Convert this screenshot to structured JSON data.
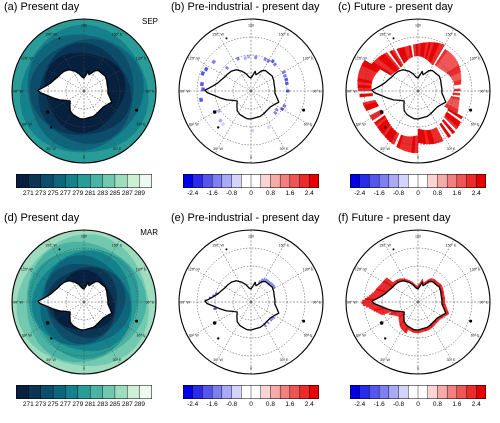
{
  "chart_data": [
    {
      "type": "heatmap",
      "panel": "a",
      "title": "(a) Present day",
      "month": "SEP",
      "projection": "south-polar-stereographic",
      "colorbar": {
        "levels": [
          "271",
          "273",
          "275",
          "277",
          "279",
          "281",
          "283",
          "285",
          "287",
          "289"
        ],
        "colors": [
          "#07203f",
          "#0a3554",
          "#0b4d6a",
          "#0e667c",
          "#14818c",
          "#2a9c98",
          "#4bb3a3",
          "#73c9b0",
          "#9fdcbf",
          "#cdefd3",
          "#edfbef"
        ]
      },
      "longitude_labels": [
        "0",
        "30° E",
        "60° E",
        "90° E",
        "120° E",
        "150° E",
        "180",
        "150° W",
        "120° W",
        "90° W",
        "60° W",
        "30° W"
      ]
    },
    {
      "type": "heatmap",
      "panel": "b",
      "title": "(b) Pre-industrial - present day",
      "projection": "south-polar-stereographic",
      "colorbar": {
        "levels": [
          "-2.4",
          "-1.6",
          "-0.8",
          "0",
          "0.8",
          "1.6",
          "2.4"
        ],
        "tick_levels": [
          "-2.4",
          "",
          "-1.6",
          "",
          "-0.8",
          "",
          "0",
          "",
          "0.8",
          "",
          "1.6",
          "",
          "2.4"
        ],
        "colors": [
          "#0000e6",
          "#2a2aeb",
          "#5555f0",
          "#7f7ff4",
          "#aaaaf7",
          "#d4d4fb",
          "#ffffff",
          "#ffffff",
          "#fbd4d4",
          "#f7aaaa",
          "#f47f7f",
          "#f05555",
          "#eb2a2a",
          "#e60000"
        ]
      },
      "longitude_labels": [
        "0",
        "30° E",
        "60° E",
        "90° E",
        "120° E",
        "150° E",
        "180",
        "150° W",
        "120° W",
        "90° W",
        "60° W",
        "30° W"
      ]
    },
    {
      "type": "heatmap",
      "panel": "c",
      "title": "(c) Future - present day",
      "projection": "south-polar-stereographic",
      "colorbar": {
        "levels": [
          "-2.4",
          "-1.6",
          "-0.8",
          "0",
          "0.8",
          "1.6",
          "2.4"
        ],
        "tick_levels": [
          "-2.4",
          "",
          "-1.6",
          "",
          "-0.8",
          "",
          "0",
          "",
          "0.8",
          "",
          "1.6",
          "",
          "2.4"
        ],
        "colors": [
          "#0000e6",
          "#2a2aeb",
          "#5555f0",
          "#7f7ff4",
          "#aaaaf7",
          "#d4d4fb",
          "#ffffff",
          "#ffffff",
          "#fbd4d4",
          "#f7aaaa",
          "#f47f7f",
          "#f05555",
          "#eb2a2a",
          "#e60000"
        ]
      },
      "longitude_labels": [
        "0",
        "30° E",
        "60° E",
        "90° E",
        "120° E",
        "150° E",
        "180",
        "150° W",
        "120° W",
        "90° W",
        "60° W",
        "30° W"
      ]
    },
    {
      "type": "heatmap",
      "panel": "d",
      "title": "(d) Present day",
      "month": "MAR",
      "projection": "south-polar-stereographic",
      "colorbar": {
        "levels": [
          "271",
          "273",
          "275",
          "277",
          "279",
          "281",
          "283",
          "285",
          "287",
          "289"
        ],
        "colors": [
          "#07203f",
          "#0a3554",
          "#0b4d6a",
          "#0e667c",
          "#14818c",
          "#2a9c98",
          "#4bb3a3",
          "#73c9b0",
          "#9fdcbf",
          "#cdefd3",
          "#edfbef"
        ]
      },
      "longitude_labels": [
        "0",
        "30° E",
        "60° E",
        "90° E",
        "120° E",
        "150° E",
        "180",
        "150° W",
        "120° W",
        "90° W",
        "60° W",
        "30° W"
      ]
    },
    {
      "type": "heatmap",
      "panel": "e",
      "title": "(e) Pre-industrial - present day",
      "projection": "south-polar-stereographic",
      "colorbar": {
        "levels": [
          "-2.4",
          "-1.6",
          "-0.8",
          "0",
          "0.8",
          "1.6",
          "2.4"
        ],
        "tick_levels": [
          "-2.4",
          "",
          "-1.6",
          "",
          "-0.8",
          "",
          "0",
          "",
          "0.8",
          "",
          "1.6",
          "",
          "2.4"
        ],
        "colors": [
          "#0000e6",
          "#2a2aeb",
          "#5555f0",
          "#7f7ff4",
          "#aaaaf7",
          "#d4d4fb",
          "#ffffff",
          "#ffffff",
          "#fbd4d4",
          "#f7aaaa",
          "#f47f7f",
          "#f05555",
          "#eb2a2a",
          "#e60000"
        ]
      },
      "longitude_labels": [
        "0",
        "30° E",
        "60° E",
        "90° E",
        "120° E",
        "150° E",
        "180",
        "150° W",
        "120° W",
        "90° W",
        "60° W",
        "30° W"
      ]
    },
    {
      "type": "heatmap",
      "panel": "f",
      "title": "(f) Future - present day",
      "projection": "south-polar-stereographic",
      "colorbar": {
        "levels": [
          "-2.4",
          "-1.6",
          "-0.8",
          "0",
          "0.8",
          "1.6",
          "2.4"
        ],
        "tick_levels": [
          "-2.4",
          "",
          "-1.6",
          "",
          "-0.8",
          "",
          "0",
          "",
          "0.8",
          "",
          "1.6",
          "",
          "2.4"
        ],
        "colors": [
          "#0000e6",
          "#2a2aeb",
          "#5555f0",
          "#7f7ff4",
          "#aaaaf7",
          "#d4d4fb",
          "#ffffff",
          "#ffffff",
          "#fbd4d4",
          "#f7aaaa",
          "#f47f7f",
          "#f05555",
          "#eb2a2a",
          "#e60000"
        ]
      },
      "longitude_labels": [
        "0",
        "30° E",
        "60° E",
        "90° E",
        "120° E",
        "150° E",
        "180",
        "150° W",
        "120° W",
        "90° W",
        "60° W",
        "30° W"
      ]
    }
  ]
}
